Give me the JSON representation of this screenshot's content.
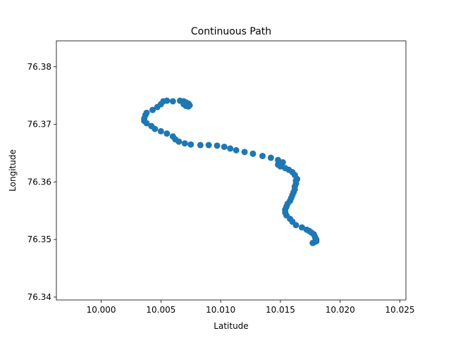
{
  "chart_data": {
    "type": "scatter",
    "title": "Continuous Path",
    "xlabel": "Latitude",
    "ylabel": "Longitude",
    "xlim": [
      9.99625,
      10.0255
    ],
    "ylim": [
      76.3395,
      76.3845
    ],
    "xticks": [
      10.0,
      10.005,
      10.01,
      10.015,
      10.02,
      10.025
    ],
    "xtick_labels": [
      "10.000",
      "10.005",
      "10.010",
      "10.015",
      "10.020",
      "10.025"
    ],
    "yticks": [
      76.34,
      76.35,
      76.36,
      76.37,
      76.38
    ],
    "ytick_labels": [
      "76.34",
      "76.35",
      "76.36",
      "76.37",
      "76.38"
    ],
    "grid": false,
    "marker_color": "#1f77b4",
    "series": [
      {
        "x": [
          10.0177,
          10.0178,
          10.018,
          10.018,
          10.0179,
          10.0178,
          10.0176,
          10.0174,
          10.0172,
          10.0168,
          10.0163,
          10.016,
          10.0158,
          10.0155,
          10.0154,
          10.0154,
          10.0155,
          10.0156,
          10.0158,
          10.0159,
          10.016,
          10.0161,
          10.0162,
          10.0162,
          10.0163,
          10.0163,
          10.0164,
          10.0162,
          10.016,
          10.0157,
          10.0154,
          10.015,
          10.0148,
          10.0152,
          10.0148,
          10.0142,
          10.0135,
          10.0127,
          10.012,
          10.0113,
          10.0108,
          10.0103,
          10.0097,
          10.009,
          10.0083,
          10.0075,
          10.007,
          10.0065,
          10.0062,
          10.006,
          10.0055,
          10.005,
          10.0045,
          10.0042,
          10.0038,
          10.0036,
          10.0036,
          10.0037,
          10.0038,
          10.0043,
          10.0047,
          10.005,
          10.0052,
          10.0055,
          10.006,
          10.0066,
          10.0069,
          10.0071,
          10.0073,
          10.0074,
          10.0073,
          10.0071,
          10.0069
        ],
        "y": [
          76.3494,
          76.3495,
          76.3497,
          76.35,
          76.3504,
          76.3509,
          76.3512,
          76.3515,
          76.3517,
          76.3521,
          76.3525,
          76.3531,
          76.3536,
          76.3542,
          76.3547,
          76.3552,
          76.3557,
          76.3562,
          76.3567,
          76.3572,
          76.3577,
          76.3582,
          76.3587,
          76.3592,
          76.3597,
          76.3602,
          76.3605,
          76.3612,
          76.3617,
          76.3621,
          76.3624,
          76.3627,
          76.363,
          76.3634,
          76.3638,
          76.3642,
          76.3645,
          76.3649,
          76.3652,
          76.3655,
          76.3658,
          76.3661,
          76.3663,
          76.3664,
          76.3664,
          76.3665,
          76.3667,
          76.367,
          76.3674,
          76.3679,
          76.3684,
          76.3688,
          76.3692,
          76.3697,
          76.3702,
          76.3706,
          76.371,
          76.3716,
          76.372,
          76.3725,
          76.373,
          76.3735,
          76.374,
          76.3741,
          76.374,
          76.3741,
          76.374,
          76.3738,
          76.3736,
          76.3733,
          76.3731,
          76.3732,
          76.3735
        ]
      }
    ]
  }
}
